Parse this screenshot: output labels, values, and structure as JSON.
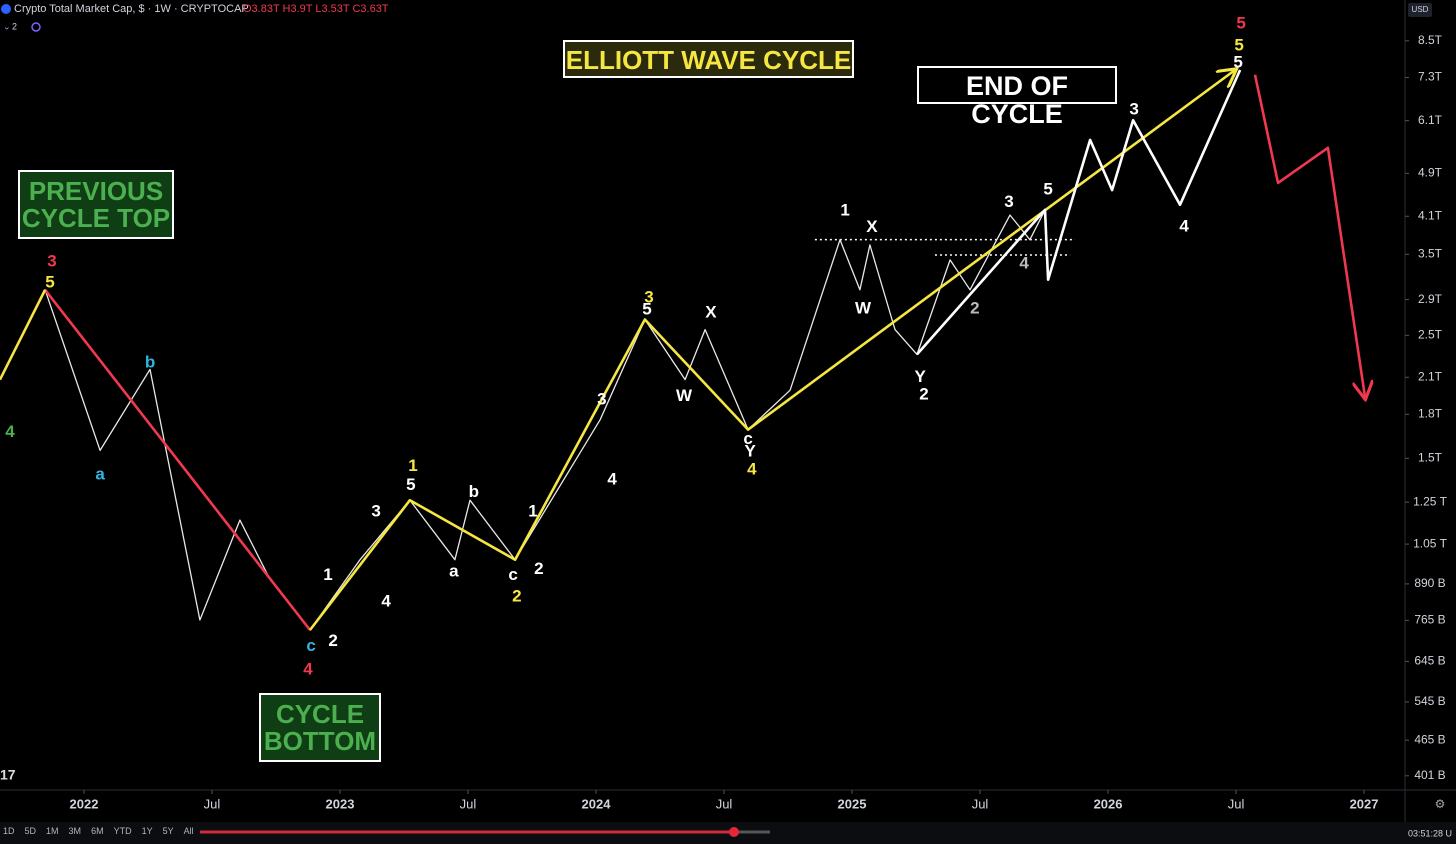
{
  "header": {
    "symbol": "Crypto Total Market Cap, $ · 1W · CRYPTOCAP",
    "ohlc": "O3.83T H3.9T L3.53T C3.63T",
    "indicator_count": "2",
    "currency": "USD"
  },
  "boxes": {
    "title": "ELLIOTT WAVE CYCLE",
    "end": "END OF CYCLE",
    "previous_top": "PREVIOUS CYCLE TOP",
    "bottom": "CYCLE BOTTOM"
  },
  "toolbar": {
    "ranges": [
      "1D",
      "5D",
      "1M",
      "3M",
      "6M",
      "YTD",
      "1Y",
      "5Y",
      "All"
    ],
    "clock": "03:51:28 U"
  },
  "chart_data": {
    "type": "line",
    "log_scale": true,
    "grid": false,
    "xlim": [
      2021.672,
      2027.16
    ],
    "ylim": [
      378000000000,
      10070000000000
    ],
    "xticks": [
      {
        "value": 2022,
        "label": "2022"
      },
      {
        "value": 2022.5,
        "label": "Jul"
      },
      {
        "value": 2023,
        "label": "2023"
      },
      {
        "value": 2023.5,
        "label": "Jul"
      },
      {
        "value": 2024,
        "label": "2024"
      },
      {
        "value": 2024.5,
        "label": "Jul"
      },
      {
        "value": 2025,
        "label": "2025"
      },
      {
        "value": 2025.5,
        "label": "Jul"
      },
      {
        "value": 2026,
        "label": "2026"
      },
      {
        "value": 2026.5,
        "label": "Jul"
      },
      {
        "value": 2027,
        "label": "2027"
      }
    ],
    "yticks": [
      {
        "value": 8500000000000,
        "label": "8.5T"
      },
      {
        "value": 7300000000000,
        "label": "7.3T"
      },
      {
        "value": 6100000000000,
        "label": "6.1T"
      },
      {
        "value": 4900000000000,
        "label": "4.9T"
      },
      {
        "value": 4100000000000,
        "label": "4.1T"
      },
      {
        "value": 3500000000000,
        "label": "3.5T"
      },
      {
        "value": 2900000000000,
        "label": "2.9T"
      },
      {
        "value": 2500000000000,
        "label": "2.5T"
      },
      {
        "value": 2100000000000,
        "label": "2.1T"
      },
      {
        "value": 1800000000000,
        "label": "1.8T"
      },
      {
        "value": 1500000000000,
        "label": "1.5T"
      },
      {
        "value": 1250000000000,
        "label": "1.25 T"
      },
      {
        "value": 1050000000000,
        "label": "1.05 T"
      },
      {
        "value": 890000000000,
        "label": "890 B"
      },
      {
        "value": 765000000000,
        "label": "765 B"
      },
      {
        "value": 645000000000,
        "label": "645 B"
      },
      {
        "value": 545000000000,
        "label": "545 B"
      },
      {
        "value": 465000000000,
        "label": "465 B"
      },
      {
        "value": 401000000000,
        "label": "401 B"
      }
    ],
    "series": [
      {
        "color": "#e8e8e8",
        "x": [
          2021.672,
          2021.848,
          2022.063,
          2022.258,
          2022.453,
          2022.609,
          2022.727,
          2022.883,
          2023.078,
          2023.273,
          2023.449,
          2023.508,
          2023.684,
          2024.016,
          2024.191,
          2024.348,
          2024.426,
          2024.594,
          2024.758,
          2024.953,
          2025.031,
          2025.07,
          2025.168,
          2025.254,
          2025.383,
          2025.461,
          2025.617,
          2025.695,
          2025.754
        ],
        "values": [
          2080000000000,
          3020000000000,
          1550000000000,
          2170000000000,
          766000000000,
          1160000000000,
          906000000000,
          735000000000,
          984000000000,
          1260000000000,
          984000000000,
          1260000000000,
          984000000000,
          1760000000000,
          2670000000000,
          2080000000000,
          2560000000000,
          1690000000000,
          1990000000000,
          3720000000000,
          3020000000000,
          3640000000000,
          2560000000000,
          2310000000000,
          3420000000000,
          3020000000000,
          4120000000000,
          3720000000000,
          4210000000000
        ]
      },
      {
        "color": "#f0384f",
        "x": [
          2021.848,
          2022.883
        ],
        "values": [
          3020000000000,
          735000000000
        ]
      },
      {
        "color": "#f5e642",
        "x": [
          2021.672,
          2021.848
        ],
        "values": [
          2080000000000,
          3020000000000
        ]
      },
      {
        "color": "#f5e642",
        "x": [
          2022.883,
          2023.273,
          2023.684,
          2024.191,
          2024.594,
          2026.496
        ],
        "values": [
          735000000000,
          1260000000000,
          984000000000,
          2670000000000,
          1690000000000,
          7530000000000
        ]
      },
      {
        "color": "#ffffff",
        "x": [
          2025.254,
          2025.754,
          2025.766,
          2025.93,
          2026.016,
          2026.098,
          2026.281,
          2026.516
        ],
        "values": [
          2310000000000,
          4210000000000,
          3150000000000,
          5630000000000,
          4570000000000,
          6110000000000,
          4300000000000,
          7530000000000
        ]
      },
      {
        "color": "#f0384f",
        "x": [
          2026.574,
          2026.664,
          2026.859,
          2027.004
        ],
        "values": [
          7380000000000,
          4710000000000,
          5450000000000,
          1930000000000
        ]
      }
    ],
    "levels": [
      {
        "x": [
          2024.855,
          2025.871
        ],
        "y": 3720000000000
      },
      {
        "x": [
          2025.324,
          2025.852
        ],
        "y": 3490000000000
      }
    ],
    "annotations": [
      {
        "text": "3",
        "color": "#f0384f",
        "x": 2021.875,
        "y": 3390000000000
      },
      {
        "text": "5",
        "color": "#f5e642",
        "x": 2021.867,
        "y": 3110000000000
      },
      {
        "text": "4",
        "color": "#4caf50",
        "x": 2021.711,
        "y": 1670000000000
      },
      {
        "text": "b",
        "color": "#2fb6e0",
        "x": 2022.258,
        "y": 2230000000000
      },
      {
        "text": "a",
        "color": "#2fb6e0",
        "x": 2022.063,
        "y": 1400000000000
      },
      {
        "text": "c",
        "color": "#2fb6e0",
        "x": 2022.887,
        "y": 686000000000
      },
      {
        "text": "4",
        "color": "#f0384f",
        "x": 2022.875,
        "y": 622000000000
      },
      {
        "text": "2",
        "color": "#ffffff",
        "x": 2022.973,
        "y": 700000000000
      },
      {
        "text": "1",
        "color": "#ffffff",
        "x": 2022.953,
        "y": 921000000000
      },
      {
        "text": "3",
        "color": "#ffffff",
        "x": 2023.141,
        "y": 1200000000000
      },
      {
        "text": "4",
        "color": "#ffffff",
        "x": 2023.18,
        "y": 826000000000
      },
      {
        "text": "1",
        "color": "#f5e642",
        "x": 2023.285,
        "y": 1450000000000
      },
      {
        "text": "5",
        "color": "#ffffff",
        "x": 2023.277,
        "y": 1340000000000
      },
      {
        "text": "b",
        "color": "#ffffff",
        "x": 2023.523,
        "y": 1300000000000
      },
      {
        "text": "a",
        "color": "#ffffff",
        "x": 2023.445,
        "y": 936000000000
      },
      {
        "text": "c",
        "color": "#ffffff",
        "x": 2023.676,
        "y": 921000000000
      },
      {
        "text": "2",
        "color": "#ffffff",
        "x": 2023.777,
        "y": 944000000000
      },
      {
        "text": "2",
        "color": "#f5e642",
        "x": 2023.691,
        "y": 843000000000
      },
      {
        "text": "1",
        "color": "#ffffff",
        "x": 2023.754,
        "y": 1200000000000
      },
      {
        "text": "3",
        "color": "#ffffff",
        "x": 2024.023,
        "y": 1910000000000
      },
      {
        "text": "4",
        "color": "#ffffff",
        "x": 2024.063,
        "y": 1370000000000
      },
      {
        "text": "3",
        "color": "#f5e642",
        "x": 2024.207,
        "y": 2920000000000
      },
      {
        "text": "5",
        "color": "#ffffff",
        "x": 2024.199,
        "y": 2780000000000
      },
      {
        "text": "X",
        "color": "#ffffff",
        "x": 2024.449,
        "y": 2740000000000
      },
      {
        "text": "W",
        "color": "#ffffff",
        "x": 2024.344,
        "y": 1940000000000
      },
      {
        "text": "c",
        "color": "#ffffff",
        "x": 2024.594,
        "y": 1620000000000
      },
      {
        "text": "Y",
        "color": "#ffffff",
        "x": 2024.602,
        "y": 1540000000000
      },
      {
        "text": "4",
        "color": "#f5e642",
        "x": 2024.609,
        "y": 1430000000000
      },
      {
        "text": "1",
        "color": "#ffffff",
        "x": 2024.973,
        "y": 4190000000000
      },
      {
        "text": "X",
        "color": "#ffffff",
        "x": 2025.078,
        "y": 3910000000000
      },
      {
        "text": "W",
        "color": "#ffffff",
        "x": 2025.043,
        "y": 2790000000000
      },
      {
        "text": "Y",
        "color": "#ffffff",
        "x": 2025.266,
        "y": 2100000000000
      },
      {
        "text": "2",
        "color": "#ffffff",
        "x": 2025.281,
        "y": 1950000000000
      },
      {
        "text": "2",
        "color": "#bbbbbb",
        "x": 2025.48,
        "y": 2790000000000
      },
      {
        "text": "4",
        "color": "#bbbbbb",
        "x": 2025.672,
        "y": 3360000000000
      },
      {
        "text": "3",
        "color": "#ffffff",
        "x": 2025.613,
        "y": 4340000000000
      },
      {
        "text": "5",
        "color": "#ffffff",
        "x": 2025.766,
        "y": 4570000000000
      },
      {
        "text": "3",
        "color": "#ffffff",
        "x": 2026.102,
        "y": 6380000000000
      },
      {
        "text": "4",
        "color": "#ffffff",
        "x": 2026.297,
        "y": 3920000000000
      },
      {
        "text": "5",
        "color": "#f0384f",
        "x": 2026.52,
        "y": 9120000000000
      },
      {
        "text": "5",
        "color": "#f5e642",
        "x": 2026.512,
        "y": 8320000000000
      },
      {
        "text": "5",
        "color": "#ffffff",
        "x": 2026.508,
        "y": 7750000000000
      }
    ]
  }
}
